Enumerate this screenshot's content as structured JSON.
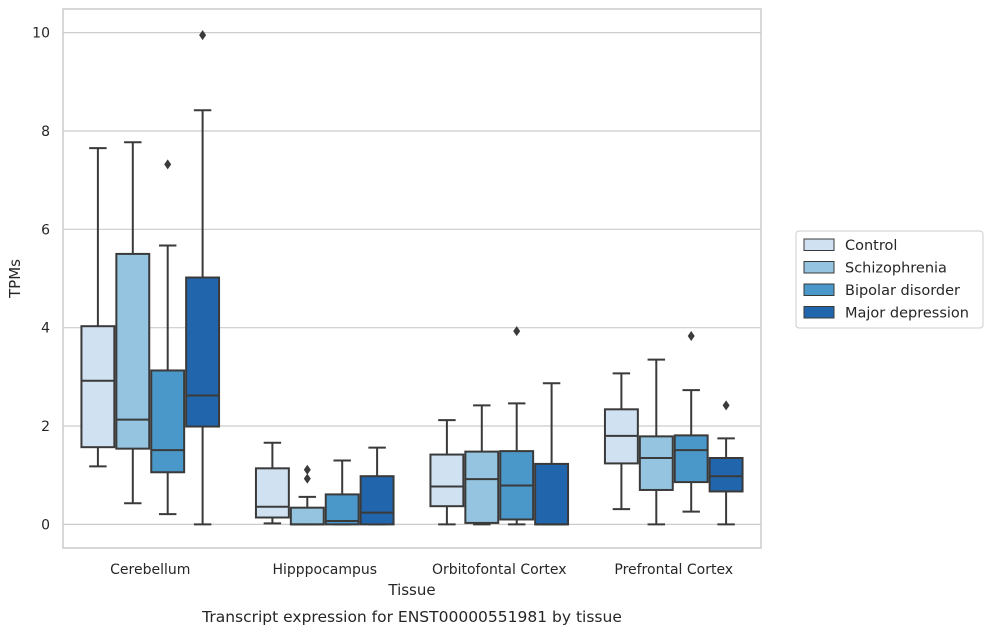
{
  "chart_data": {
    "type": "boxplot",
    "title": "",
    "caption": "Transcript expression for ENST00000551981 by tissue",
    "xlabel": "Tissue",
    "ylabel": "TPMs",
    "ylim": [
      -0.48,
      10.48
    ],
    "yticks": [
      0,
      2,
      4,
      6,
      8,
      10
    ],
    "grid": "horizontal",
    "legend_position": "right",
    "categories": [
      "Cerebellum",
      "Hipppocampus",
      "Orbitofontal Cortex",
      "Prefrontal Cortex"
    ],
    "series": [
      {
        "name": "Control",
        "color": "#d0e1f2",
        "boxes": [
          {
            "whislo": 1.18,
            "q1": 1.57,
            "med": 2.92,
            "q3": 4.03,
            "whishi": 7.65,
            "fliers": []
          },
          {
            "whislo": 0.02,
            "q1": 0.14,
            "med": 0.36,
            "q3": 1.14,
            "whishi": 1.66,
            "fliers": []
          },
          {
            "whislo": 0.0,
            "q1": 0.37,
            "med": 0.77,
            "q3": 1.42,
            "whishi": 2.12,
            "fliers": []
          },
          {
            "whislo": 0.31,
            "q1": 1.24,
            "med": 1.8,
            "q3": 2.34,
            "whishi": 3.07,
            "fliers": []
          }
        ]
      },
      {
        "name": "Schizophrenia",
        "color": "#94c4df",
        "boxes": [
          {
            "whislo": 0.43,
            "q1": 1.54,
            "med": 2.13,
            "q3": 5.5,
            "whishi": 7.77,
            "fliers": []
          },
          {
            "whislo": 0.0,
            "q1": 0.0,
            "med": 0.0,
            "q3": 0.34,
            "whishi": 0.56,
            "fliers": [
              0.93,
              1.11
            ]
          },
          {
            "whislo": 0.0,
            "q1": 0.03,
            "med": 0.92,
            "q3": 1.48,
            "whishi": 2.42,
            "fliers": []
          },
          {
            "whislo": 0.0,
            "q1": 0.7,
            "med": 1.35,
            "q3": 1.79,
            "whishi": 3.35,
            "fliers": []
          }
        ]
      },
      {
        "name": "Bipolar disorder",
        "color": "#4a98c9",
        "boxes": [
          {
            "whislo": 0.21,
            "q1": 1.06,
            "med": 1.51,
            "q3": 3.13,
            "whishi": 5.67,
            "fliers": [
              7.32
            ]
          },
          {
            "whislo": 0.0,
            "q1": 0.0,
            "med": 0.07,
            "q3": 0.61,
            "whishi": 1.3,
            "fliers": []
          },
          {
            "whislo": 0.0,
            "q1": 0.1,
            "med": 0.79,
            "q3": 1.49,
            "whishi": 2.46,
            "fliers": [
              3.93
            ]
          },
          {
            "whislo": 0.26,
            "q1": 0.86,
            "med": 1.51,
            "q3": 1.81,
            "whishi": 2.73,
            "fliers": [
              3.83
            ]
          }
        ]
      },
      {
        "name": "Major depression",
        "color": "#2166ac",
        "boxes": [
          {
            "whislo": 0.0,
            "q1": 1.99,
            "med": 2.62,
            "q3": 5.02,
            "whishi": 8.42,
            "fliers": [
              9.95
            ]
          },
          {
            "whislo": 0.0,
            "q1": 0.0,
            "med": 0.24,
            "q3": 0.98,
            "whishi": 1.56,
            "fliers": []
          },
          {
            "whislo": 0.0,
            "q1": 0.0,
            "med": 0.0,
            "q3": 1.23,
            "whishi": 2.87,
            "fliers": []
          },
          {
            "whislo": 0.0,
            "q1": 0.67,
            "med": 0.98,
            "q3": 1.35,
            "whishi": 1.75,
            "fliers": [
              2.42
            ]
          }
        ]
      }
    ]
  }
}
